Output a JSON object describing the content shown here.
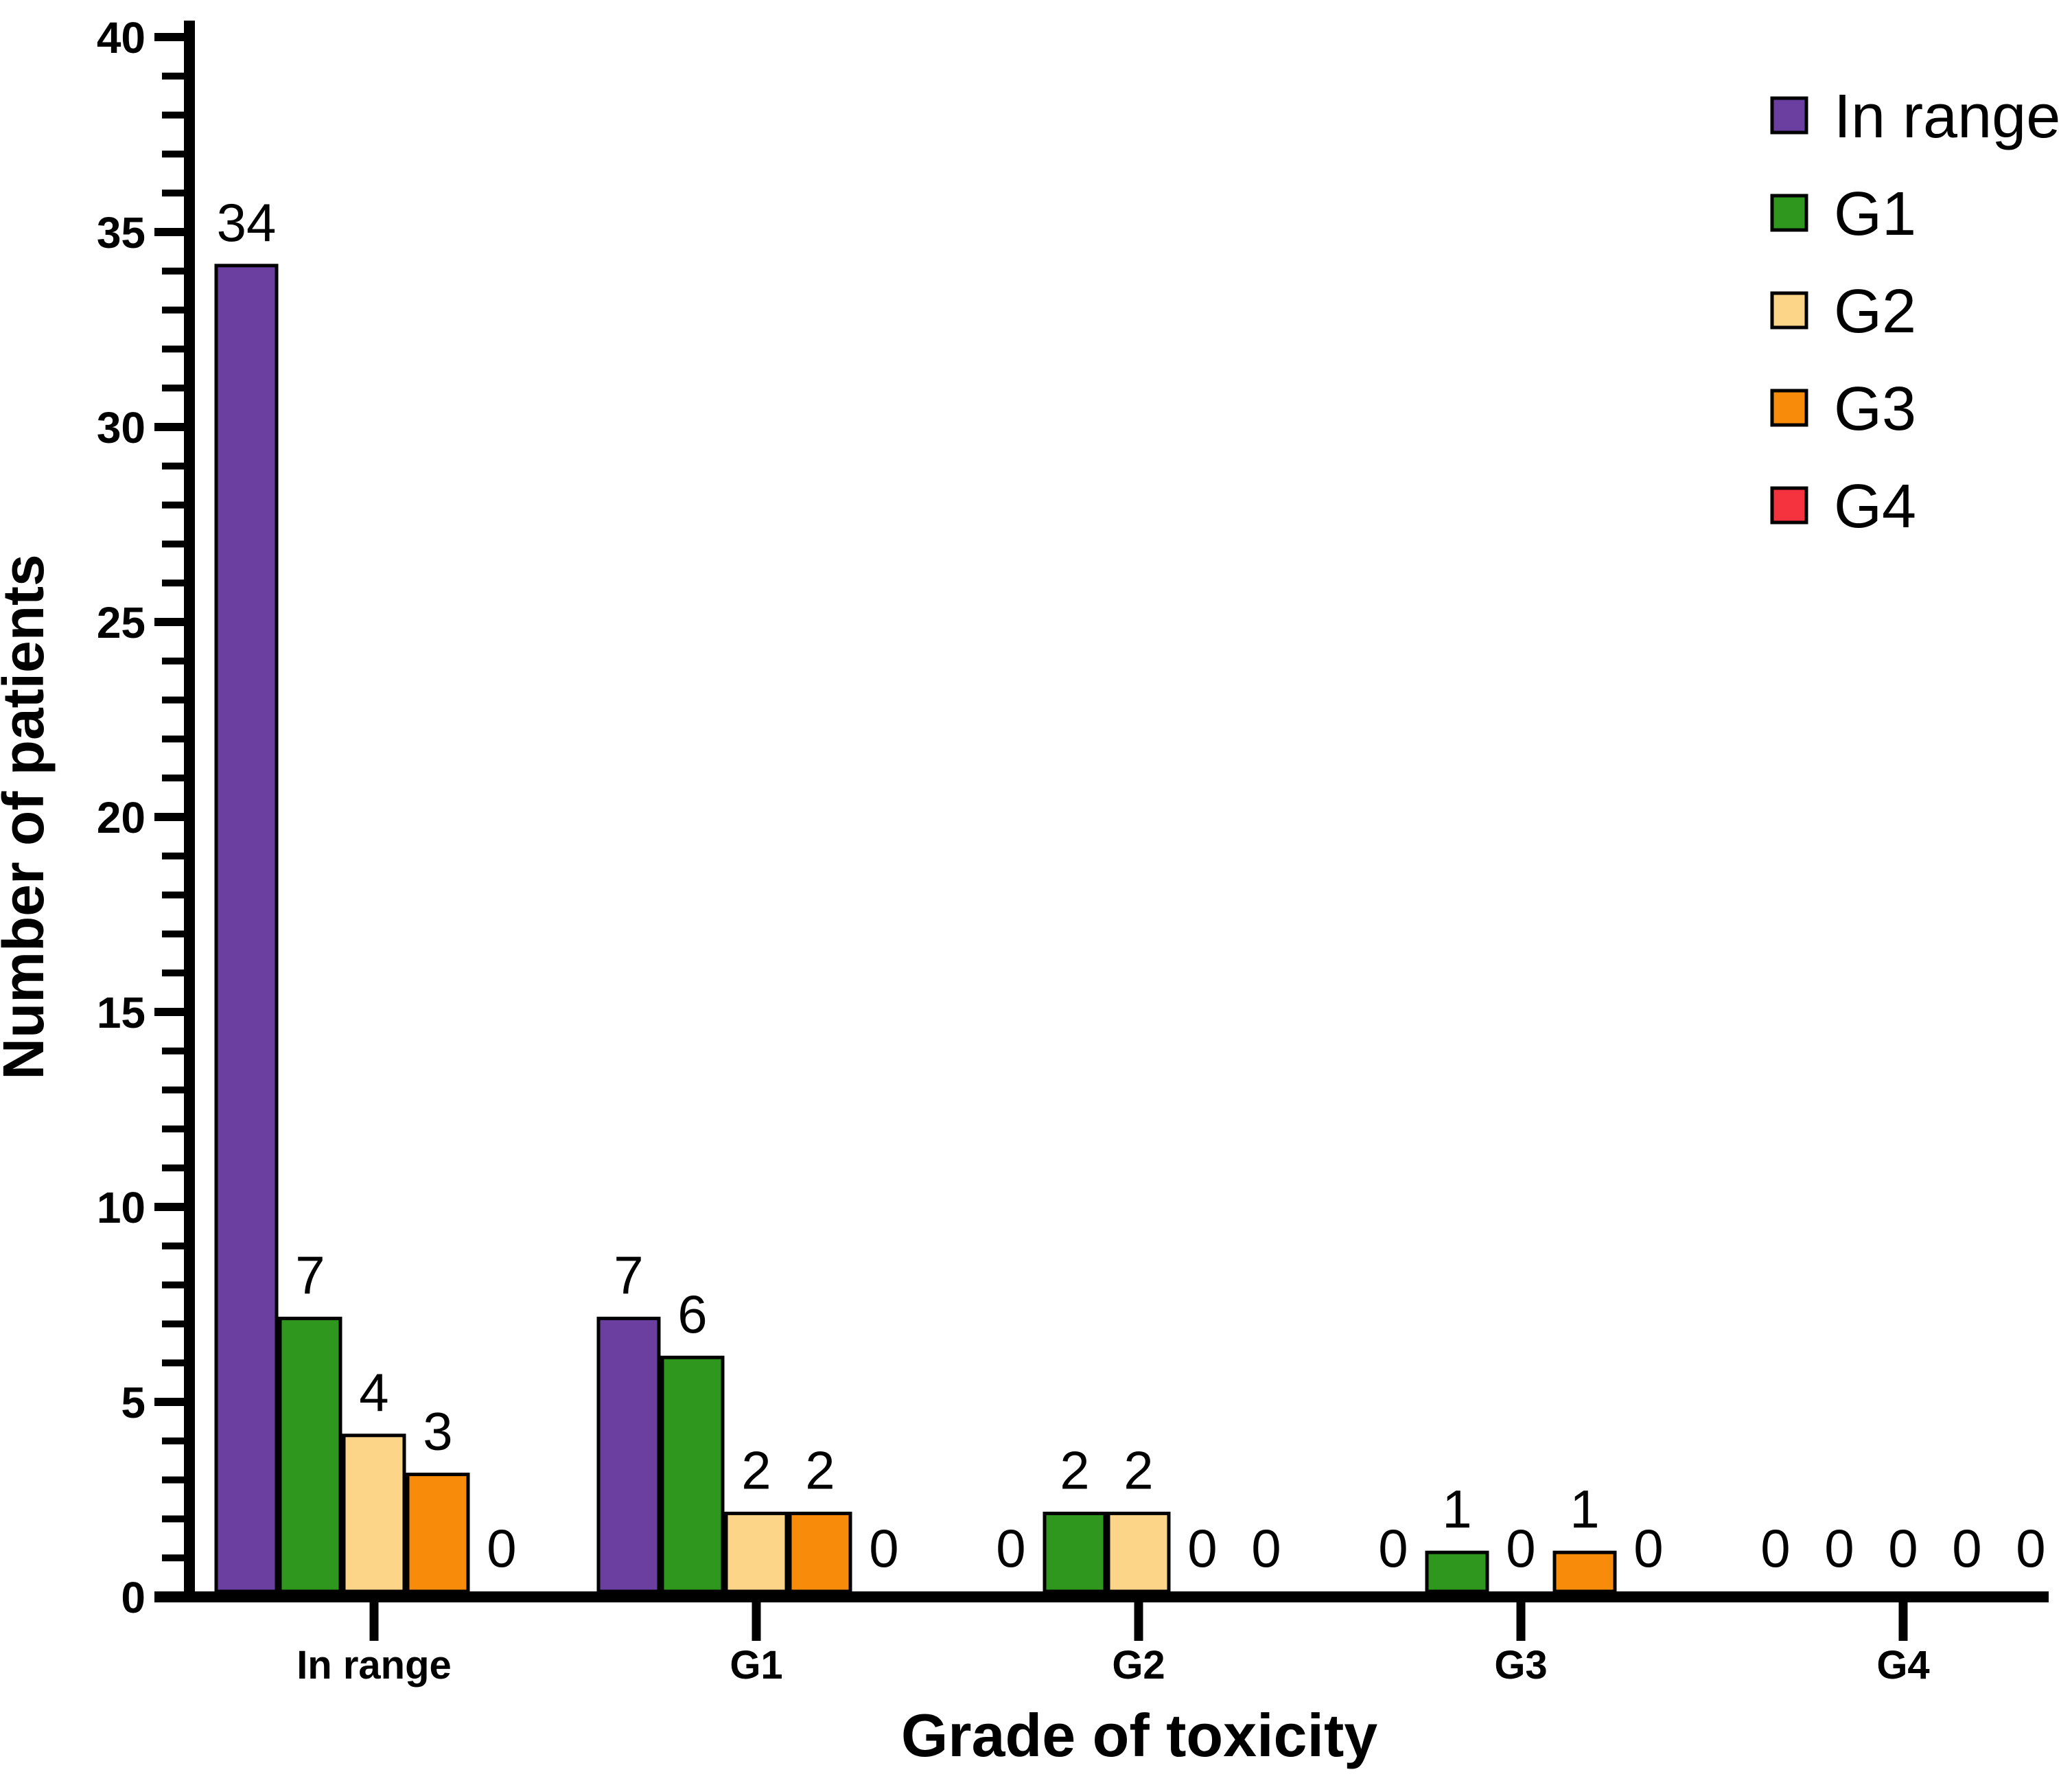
{
  "figure": {
    "background_color": "#FFFFFF",
    "axis_color": "#000000",
    "text_color": "#000000"
  },
  "chart_data": {
    "type": "bar",
    "title": "",
    "xlabel": "Grade of toxicity",
    "ylabel": "Number of patients",
    "categories": [
      "In range",
      "G1",
      "G2",
      "G3",
      "G4"
    ],
    "series": [
      {
        "name": "In range",
        "color": "#6B3FA0",
        "values": [
          34,
          7,
          0,
          0,
          0
        ]
      },
      {
        "name": "G1",
        "color": "#2F961E",
        "values": [
          7,
          6,
          2,
          1,
          0
        ]
      },
      {
        "name": "G2",
        "color": "#FCD589",
        "values": [
          4,
          2,
          2,
          0,
          0
        ]
      },
      {
        "name": "G3",
        "color": "#F88C0A",
        "values": [
          3,
          2,
          0,
          1,
          0
        ]
      },
      {
        "name": "G4",
        "color": "#F4333E",
        "values": [
          0,
          0,
          0,
          0,
          0
        ]
      }
    ],
    "bar_value_labels": true,
    "ylim": [
      0,
      40
    ],
    "y_ticks": [
      0,
      5,
      10,
      15,
      20,
      25,
      30,
      35,
      40
    ],
    "y_minor_tick_step": 1,
    "grid": false,
    "legend_position": "top-right",
    "legend_entries": [
      "In range",
      "G1",
      "G2",
      "G3",
      "G4"
    ]
  }
}
